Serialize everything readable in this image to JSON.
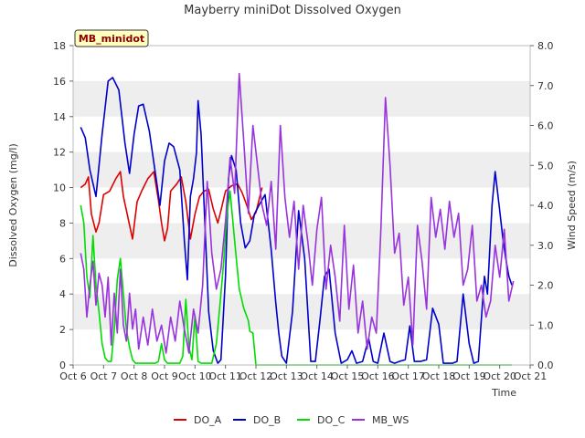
{
  "chart_data": {
    "type": "line",
    "title": "Mayberry miniDot Dissolved Oxygen",
    "station_label": "MB_minidot",
    "xlabel": "Time",
    "ylabel_left": "Dissolved Oxygen (mg/l)",
    "ylabel_right": "Wind Speed (m/s)",
    "xlim": [
      6,
      21
    ],
    "ylim_left": [
      0,
      18
    ],
    "ylim_right": [
      0,
      8
    ],
    "x_ticks": [
      {
        "x": 6,
        "label": "Oct 6"
      },
      {
        "x": 7,
        "label": "Oct 7"
      },
      {
        "x": 8,
        "label": "Oct 8"
      },
      {
        "x": 9,
        "label": "Oct 9"
      },
      {
        "x": 10,
        "label": "Oct 10"
      },
      {
        "x": 11,
        "label": "Oct 11"
      },
      {
        "x": 12,
        "label": "Oct 12"
      },
      {
        "x": 13,
        "label": "Oct 13"
      },
      {
        "x": 14,
        "label": "Oct 14"
      },
      {
        "x": 15,
        "label": "Oct 15"
      },
      {
        "x": 16,
        "label": "Oct 16"
      },
      {
        "x": 17,
        "label": "Oct 17"
      },
      {
        "x": 18,
        "label": "Oct 18"
      },
      {
        "x": 19,
        "label": "Oct 19"
      },
      {
        "x": 20,
        "label": "Oct 20"
      },
      {
        "x": 21,
        "label": "Oct 21"
      }
    ],
    "y_ticks_left": [
      0,
      2,
      4,
      6,
      8,
      10,
      12,
      14,
      16,
      18
    ],
    "y_ticks_right": [
      "0.0",
      "1.0",
      "2.0",
      "3.0",
      "4.0",
      "5.0",
      "6.0",
      "7.0",
      "8.0"
    ],
    "grid": "horizontal alternating bands",
    "legend_position": "bottom",
    "series": [
      {
        "name": "DO_A",
        "color": "#dd0000",
        "axis": "left",
        "x": [
          6.25,
          6.4,
          6.5,
          6.6,
          6.75,
          6.85,
          7.0,
          7.2,
          7.4,
          7.55,
          7.65,
          7.8,
          7.95,
          8.1,
          8.25,
          8.45,
          8.65,
          8.8,
          8.9,
          9.0,
          9.1,
          9.2,
          9.4,
          9.55,
          9.7,
          9.85,
          10.0,
          10.15,
          10.3,
          10.45,
          10.6,
          10.75,
          10.85,
          11.0,
          11.2,
          11.4,
          11.55,
          11.7,
          11.85,
          12.0,
          12.2
        ],
        "y": [
          10.0,
          10.2,
          10.6,
          8.5,
          7.5,
          8.0,
          9.6,
          9.8,
          10.5,
          10.9,
          9.5,
          8.3,
          7.1,
          9.2,
          9.8,
          10.5,
          10.9,
          9.3,
          8.0,
          7.0,
          7.7,
          9.8,
          10.2,
          10.6,
          9.2,
          7.1,
          8.5,
          9.5,
          9.8,
          9.9,
          8.8,
          8.0,
          8.7,
          9.8,
          10.1,
          10.2,
          9.7,
          9.0,
          8.2,
          8.6,
          10.0
        ]
      },
      {
        "name": "DO_B",
        "color": "#0000cc",
        "axis": "left",
        "x": [
          6.25,
          6.4,
          6.55,
          6.75,
          6.95,
          7.15,
          7.3,
          7.5,
          7.7,
          7.85,
          8.0,
          8.15,
          8.3,
          8.5,
          8.7,
          8.85,
          9.0,
          9.15,
          9.3,
          9.5,
          9.65,
          9.75,
          9.85,
          9.95,
          10.05,
          10.1,
          10.2,
          10.3,
          10.45,
          10.6,
          10.75,
          10.85,
          11.0,
          11.1,
          11.2,
          11.35,
          11.5,
          11.65,
          11.8,
          11.95,
          12.1,
          12.3,
          12.5,
          12.65,
          12.75,
          12.85,
          13.0,
          13.2,
          13.4,
          13.6,
          13.8,
          13.95,
          14.1,
          14.25,
          14.4,
          14.6,
          14.8,
          15.0,
          15.15,
          15.3,
          15.5,
          15.7,
          15.85,
          16.0,
          16.2,
          16.4,
          16.55,
          16.7,
          16.9,
          17.05,
          17.2,
          17.4,
          17.6,
          17.8,
          18.0,
          18.15,
          18.3,
          18.45,
          18.6,
          18.8,
          19.0,
          19.15,
          19.3,
          19.5,
          19.6,
          19.75,
          19.85,
          20.0,
          20.1,
          20.2,
          20.3,
          20.4
        ],
        "y": [
          13.4,
          12.8,
          11.0,
          9.5,
          13.0,
          16.0,
          16.2,
          15.5,
          12.5,
          10.8,
          13.0,
          14.6,
          14.7,
          13.2,
          10.8,
          9.0,
          11.5,
          12.5,
          12.3,
          11.0,
          7.0,
          4.8,
          9.5,
          10.5,
          12.0,
          14.9,
          13.0,
          9.0,
          3.0,
          0.8,
          0.1,
          0.3,
          5.0,
          10.5,
          11.8,
          11.0,
          8.0,
          6.6,
          7.0,
          8.5,
          9.0,
          9.6,
          6.5,
          3.5,
          1.8,
          0.5,
          0.1,
          3.0,
          8.7,
          6.0,
          0.2,
          0.2,
          2.5,
          5.0,
          5.4,
          1.8,
          0.1,
          0.3,
          0.8,
          0.1,
          0.2,
          1.5,
          0.2,
          0.1,
          1.8,
          0.2,
          0.1,
          0.2,
          0.3,
          2.2,
          0.2,
          0.2,
          0.3,
          3.2,
          2.3,
          0.1,
          0.1,
          0.1,
          0.2,
          4.0,
          1.2,
          0.1,
          0.2,
          5.0,
          4.0,
          9.0,
          10.9,
          8.7,
          7.2,
          6.0,
          5.0,
          4.5
        ]
      },
      {
        "name": "DO_C",
        "color": "#00dd00",
        "axis": "left",
        "x": [
          6.25,
          6.35,
          6.45,
          6.55,
          6.65,
          6.75,
          6.85,
          6.95,
          7.05,
          7.15,
          7.25,
          7.35,
          7.45,
          7.55,
          7.65,
          7.75,
          7.85,
          7.95,
          8.05,
          8.15,
          8.3,
          8.5,
          8.7,
          8.8,
          8.9,
          9.0,
          9.1,
          9.3,
          9.5,
          9.6,
          9.7,
          9.8,
          9.9,
          10.0,
          10.1,
          10.2,
          10.3,
          10.4,
          10.55,
          10.7,
          10.85,
          10.95,
          11.05,
          11.15,
          11.3,
          11.45,
          11.6,
          11.75,
          11.8,
          11.9,
          12.0,
          13.0,
          14.0,
          15.0,
          16.0,
          17.0,
          18.0,
          19.0,
          20.0,
          20.4
        ],
        "y": [
          9.0,
          8.0,
          5.0,
          3.8,
          7.3,
          4.5,
          3.0,
          1.2,
          0.4,
          0.2,
          0.2,
          2.0,
          4.8,
          6.0,
          4.0,
          2.0,
          1.0,
          0.3,
          0.1,
          0.1,
          0.1,
          0.1,
          0.1,
          0.2,
          1.2,
          0.3,
          0.1,
          0.1,
          0.1,
          0.5,
          3.7,
          1.0,
          0.3,
          2.8,
          0.2,
          0.1,
          0.1,
          0.1,
          0.1,
          1.2,
          4.0,
          6.0,
          8.5,
          9.8,
          7.0,
          4.3,
          3.2,
          2.5,
          1.9,
          1.8,
          0.0,
          0.0,
          0.0,
          0.0,
          0.0,
          0.0,
          0.0,
          0.0,
          0.0,
          0.0
        ]
      },
      {
        "name": "MB_WS",
        "color": "#9933dd",
        "axis": "right",
        "x": [
          6.25,
          6.35,
          6.45,
          6.55,
          6.65,
          6.75,
          6.85,
          6.95,
          7.05,
          7.15,
          7.25,
          7.35,
          7.45,
          7.55,
          7.65,
          7.75,
          7.85,
          7.95,
          8.05,
          8.15,
          8.3,
          8.45,
          8.6,
          8.75,
          8.9,
          9.05,
          9.2,
          9.35,
          9.5,
          9.65,
          9.8,
          9.95,
          10.1,
          10.25,
          10.4,
          10.55,
          10.7,
          10.85,
          11.0,
          11.15,
          11.3,
          11.45,
          11.6,
          11.75,
          11.9,
          12.05,
          12.2,
          12.35,
          12.5,
          12.65,
          12.8,
          12.95,
          13.1,
          13.25,
          13.4,
          13.55,
          13.7,
          13.85,
          14.0,
          14.15,
          14.3,
          14.45,
          14.6,
          14.75,
          14.9,
          15.05,
          15.2,
          15.35,
          15.5,
          15.65,
          15.8,
          15.95,
          16.1,
          16.25,
          16.4,
          16.55,
          16.7,
          16.85,
          17.0,
          17.15,
          17.3,
          17.45,
          17.6,
          17.75,
          17.9,
          18.05,
          18.2,
          18.35,
          18.5,
          18.65,
          18.8,
          18.95,
          19.1,
          19.25,
          19.4,
          19.55,
          19.7,
          19.85,
          20.0,
          20.15,
          20.3,
          20.45
        ],
        "y": [
          2.8,
          2.4,
          1.2,
          2.0,
          2.6,
          1.5,
          2.3,
          2.0,
          1.2,
          2.2,
          0.5,
          1.8,
          0.8,
          2.4,
          1.0,
          0.6,
          1.8,
          0.9,
          1.4,
          0.4,
          1.2,
          0.5,
          1.4,
          0.6,
          1.0,
          0.3,
          1.2,
          0.6,
          1.6,
          0.9,
          0.3,
          1.4,
          0.8,
          2.0,
          4.6,
          2.8,
          1.9,
          2.4,
          3.6,
          5.2,
          4.3,
          7.3,
          5.6,
          3.8,
          6.0,
          5.0,
          4.0,
          3.5,
          4.6,
          2.9,
          6.0,
          4.2,
          3.2,
          4.1,
          2.4,
          4.0,
          3.1,
          2.0,
          3.4,
          4.2,
          1.9,
          3.0,
          2.2,
          1.1,
          3.5,
          1.4,
          2.5,
          0.8,
          1.6,
          0.4,
          1.2,
          0.8,
          3.4,
          6.7,
          5.0,
          2.8,
          3.3,
          1.5,
          2.2,
          0.5,
          3.5,
          2.6,
          1.4,
          4.2,
          3.2,
          3.9,
          2.9,
          4.1,
          3.2,
          3.8,
          2.0,
          2.4,
          3.5,
          1.6,
          2.0,
          1.2,
          1.6,
          3.0,
          2.2,
          3.4,
          1.6,
          2.1
        ]
      }
    ]
  }
}
